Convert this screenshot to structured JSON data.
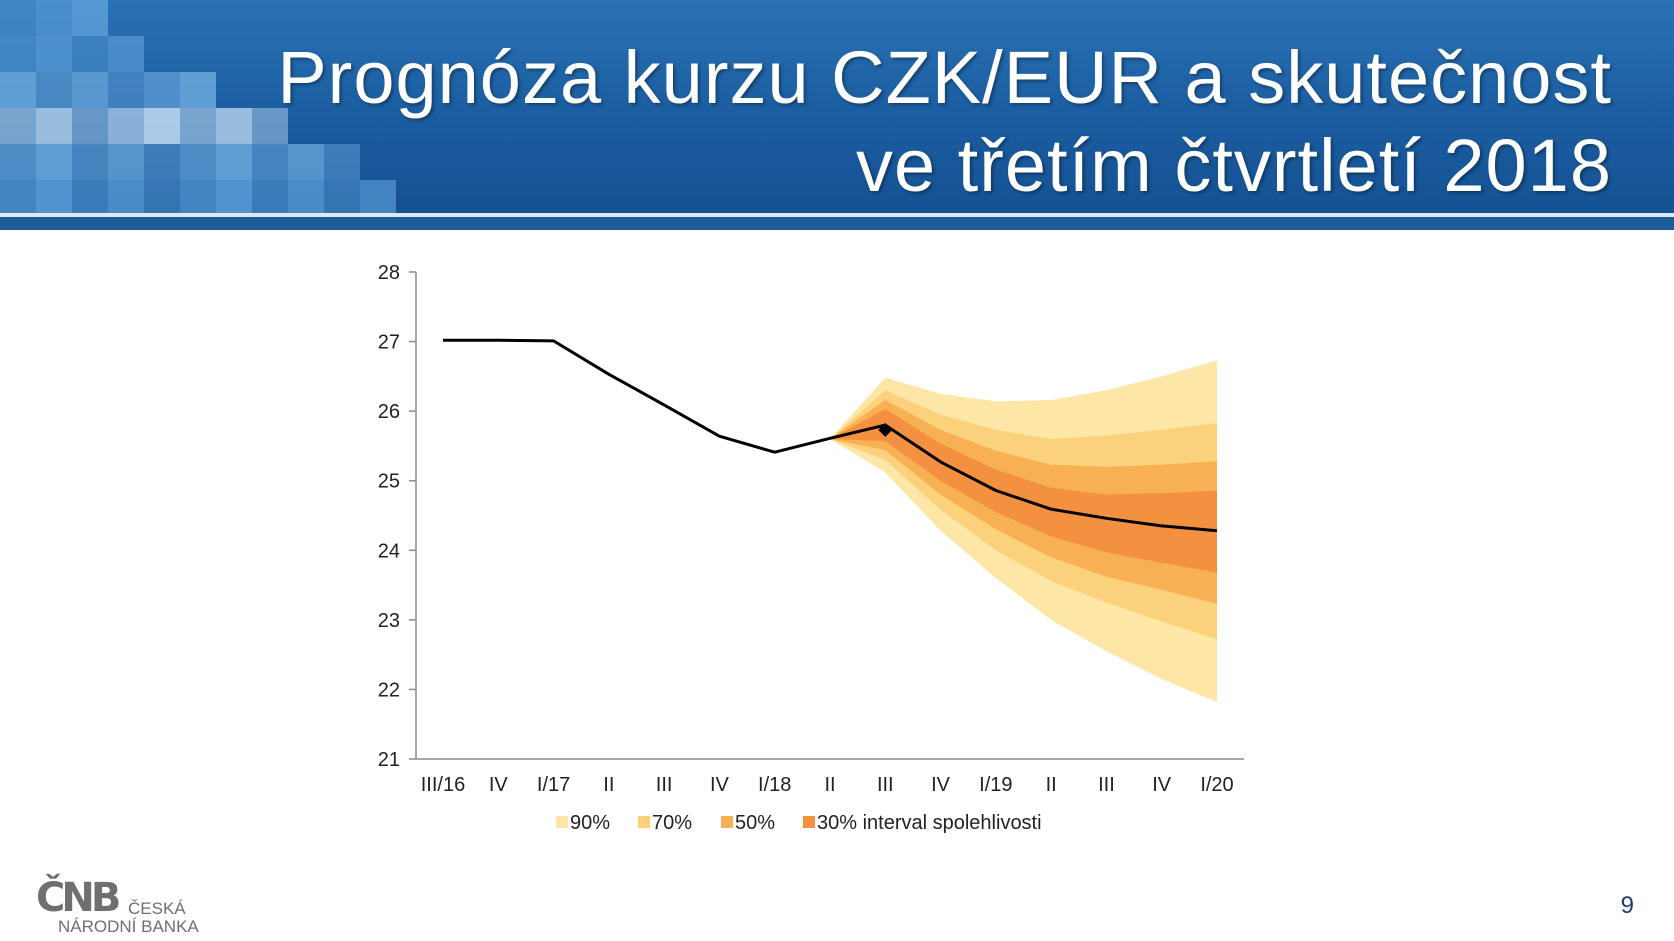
{
  "slide": {
    "title_line1": "Prognóza kurzu CZK/EUR a skutečnost",
    "title_line2": "ve třetím čtvrtletí 2018",
    "page_number": "9"
  },
  "logo": {
    "mark": "ČNB",
    "line1": "ČESKÁ",
    "line2": "NÁRODNÍ BANKA"
  },
  "colors": {
    "banner": "#1c5fa3",
    "band90": "#fde6a6",
    "band70": "#fbd17b",
    "band50": "#f7b052",
    "band30": "#f39140",
    "line": "#000000"
  },
  "chart_data": {
    "type": "line",
    "categories": [
      "III/16",
      "IV",
      "I/17",
      "II",
      "III",
      "IV",
      "I/18",
      "II",
      "III",
      "IV",
      "I/19",
      "II",
      "III",
      "IV",
      "I/20"
    ],
    "ylim": [
      21,
      28
    ],
    "yticks": [
      21,
      22,
      23,
      24,
      25,
      26,
      27,
      28
    ],
    "series": [
      {
        "values": [
          27.02,
          27.02,
          27.01,
          26.53,
          26.09,
          25.64,
          25.41,
          25.61,
          25.8,
          25.27,
          24.86,
          24.59,
          24.46,
          24.35,
          24.28
        ]
      }
    ],
    "actual_marker": {
      "category": "III",
      "value": 25.73
    },
    "fan": {
      "start_index": 7,
      "bands": [
        {
          "name": "90%",
          "lower": [
            25.6,
            25.12,
            24.28,
            23.6,
            23.0,
            22.55,
            22.15,
            21.82
          ],
          "upper": [
            25.6,
            26.48,
            26.25,
            26.14,
            26.16,
            26.3,
            26.5,
            26.73
          ]
        },
        {
          "name": "70%",
          "lower": [
            25.6,
            25.3,
            24.58,
            24.0,
            23.56,
            23.25,
            22.98,
            22.72
          ],
          "upper": [
            25.6,
            26.3,
            25.95,
            25.73,
            25.6,
            25.65,
            25.73,
            25.83
          ]
        },
        {
          "name": "50%",
          "lower": [
            25.6,
            25.44,
            24.8,
            24.3,
            23.9,
            23.62,
            23.43,
            23.23
          ],
          "upper": [
            25.6,
            26.16,
            25.73,
            25.43,
            25.23,
            25.2,
            25.23,
            25.28
          ]
        },
        {
          "name": "30% interval spolehlivosti",
          "lower": [
            25.6,
            25.57,
            25.0,
            24.55,
            24.2,
            23.97,
            23.82,
            23.68
          ],
          "upper": [
            25.6,
            26.03,
            25.53,
            25.16,
            24.9,
            24.8,
            24.82,
            24.86
          ]
        }
      ]
    },
    "legend": [
      "90%",
      "70%",
      "50%",
      "30% interval spolehlivosti"
    ],
    "legend_position": "bottom",
    "grid": false
  }
}
